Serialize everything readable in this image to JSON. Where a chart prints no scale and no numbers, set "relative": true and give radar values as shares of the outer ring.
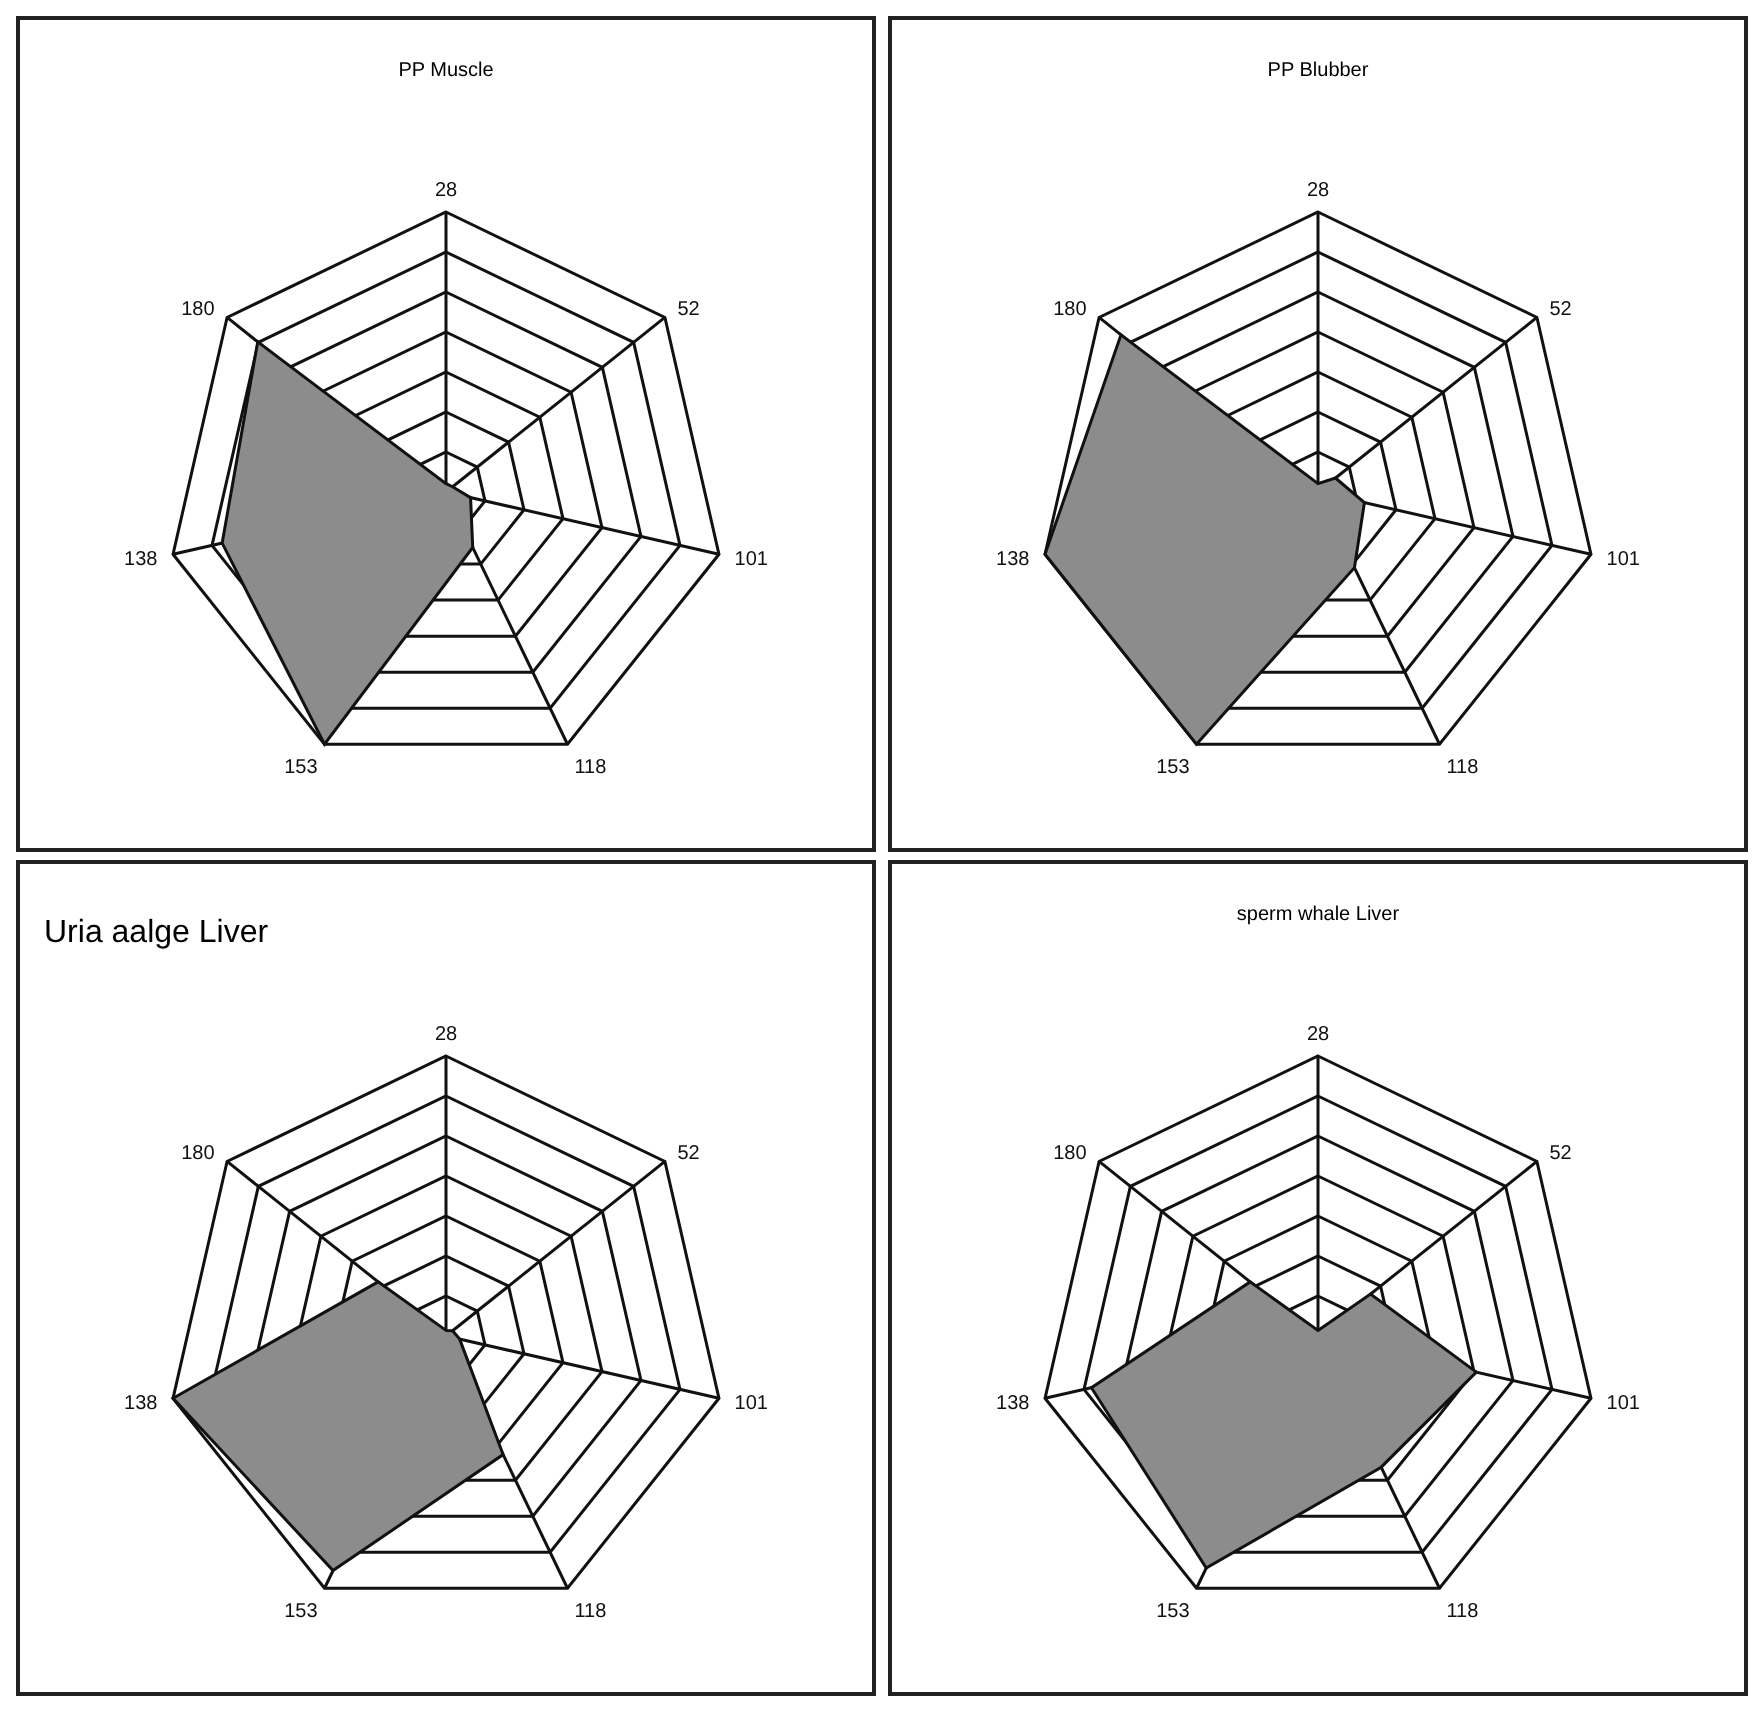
{
  "chart_data": [
    {
      "type": "radar",
      "title": "PP Muscle",
      "relative": true,
      "grid": true,
      "categories": [
        "28",
        "52",
        "101",
        "118",
        "153",
        "138",
        "180"
      ],
      "series": [
        {
          "color": "#8c8c8c",
          "values": [
            0.03,
            0.03,
            0.09,
            0.22,
            1.0,
            0.82,
            0.86
          ]
        }
      ]
    },
    {
      "type": "radar",
      "title": "PP Blubber",
      "relative": true,
      "grid": true,
      "categories": [
        "28",
        "52",
        "101",
        "118",
        "153",
        "138",
        "180"
      ],
      "series": [
        {
          "color": "#8c8c8c",
          "values": [
            0.03,
            0.08,
            0.17,
            0.3,
            1.0,
            1.0,
            0.9
          ]
        }
      ]
    },
    {
      "type": "radar",
      "title": "Uria aalge Liver",
      "relative": true,
      "grid": true,
      "categories": [
        "28",
        "52",
        "101",
        "118",
        "153",
        "138",
        "180"
      ],
      "series": [
        {
          "color": "#8c8c8c",
          "values": [
            0.02,
            0.03,
            0.05,
            0.47,
            0.93,
            1.0,
            0.31
          ]
        }
      ]
    },
    {
      "type": "radar",
      "title": "sperm whale Liver",
      "relative": true,
      "grid": true,
      "categories": [
        "28",
        "52",
        "101",
        "118",
        "153",
        "138",
        "180"
      ],
      "series": [
        {
          "color": "#8c8c8c",
          "values": [
            0.02,
            0.24,
            0.58,
            0.52,
            0.92,
            0.83,
            0.31
          ]
        }
      ]
    }
  ]
}
